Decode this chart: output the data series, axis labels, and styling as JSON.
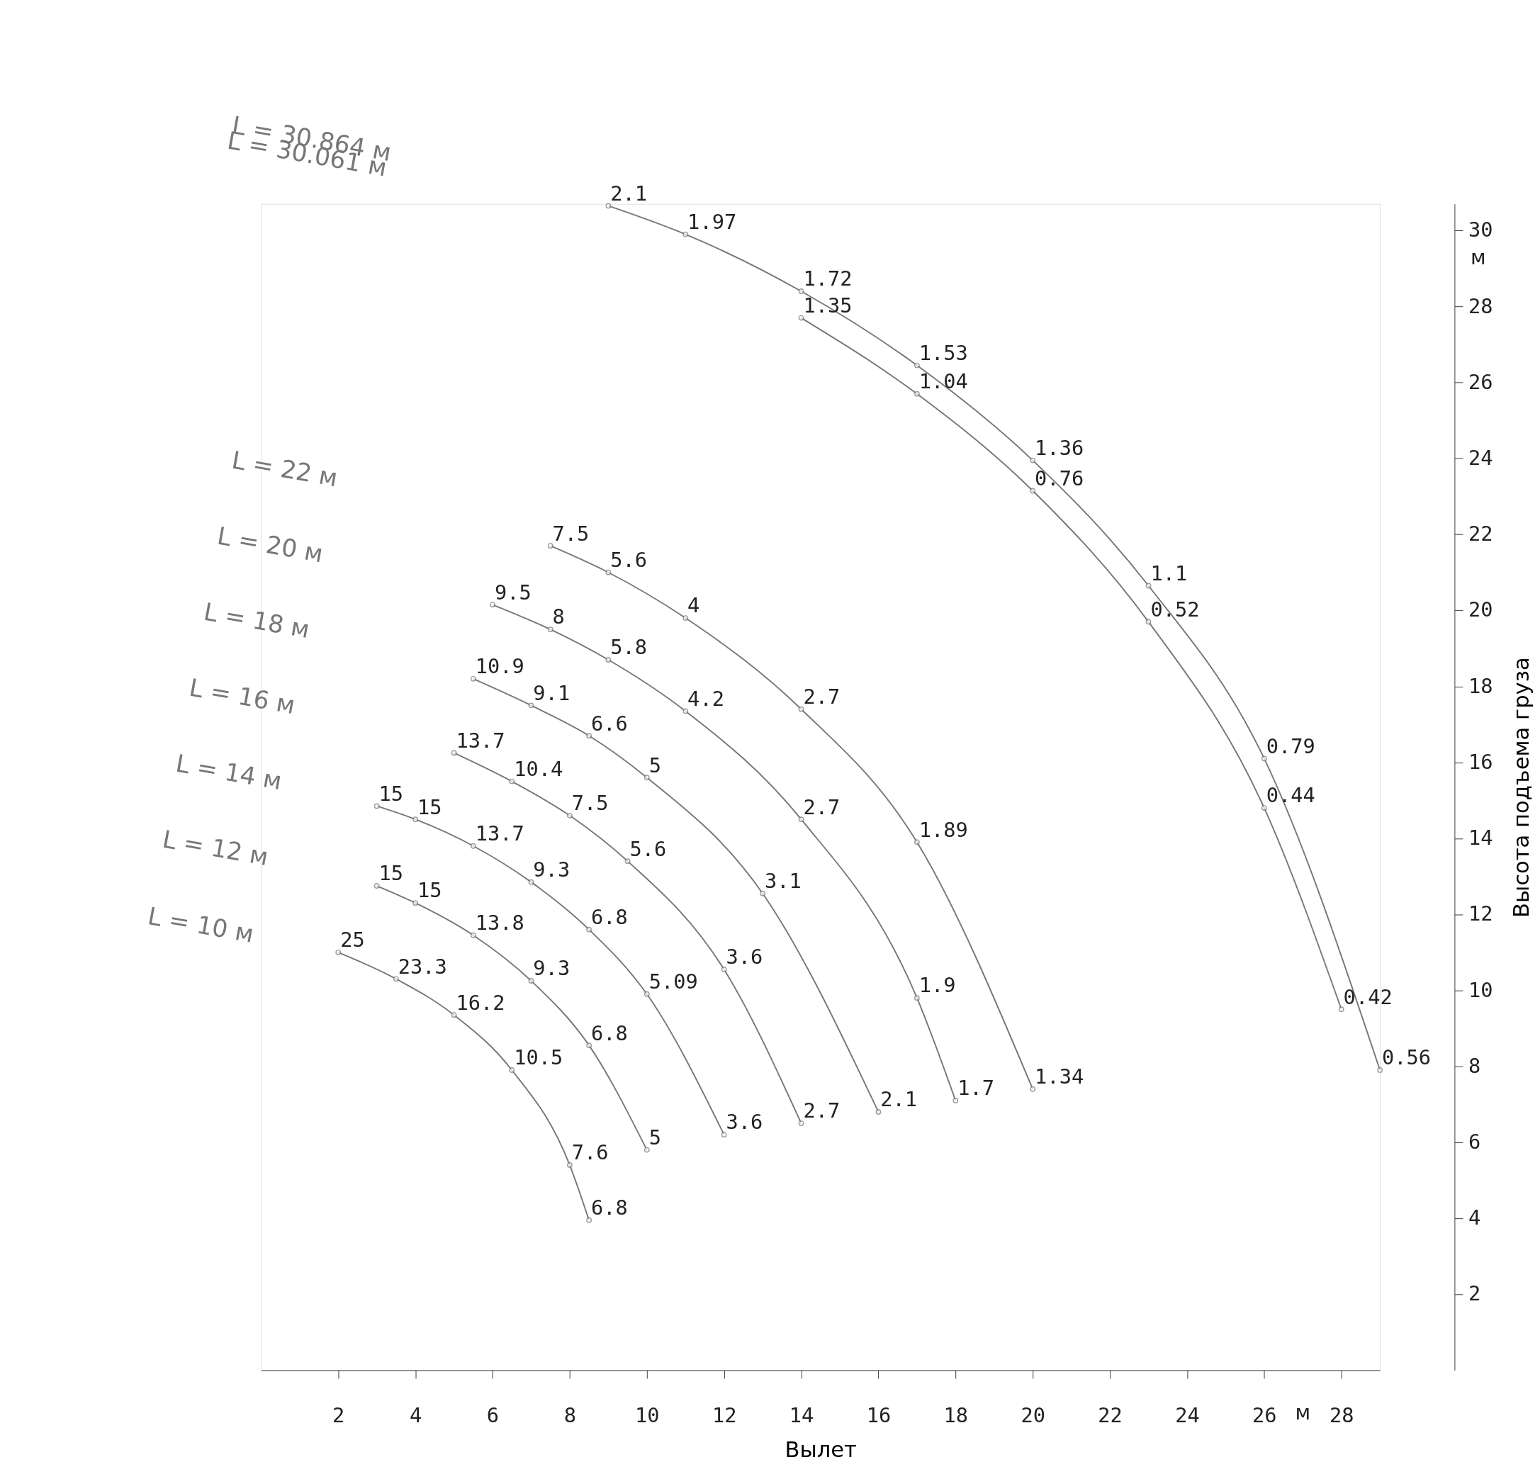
{
  "chart_data": {
    "type": "line",
    "xlabel": "Вылет",
    "ylabel": "Высота подъема груза",
    "xlim": [
      0,
      29
    ],
    "ylim": [
      0,
      30.7
    ],
    "xticks": [
      2,
      4,
      6,
      8,
      10,
      12,
      14,
      16,
      18,
      20,
      22,
      24,
      26,
      28
    ],
    "yticks": [
      2,
      4,
      6,
      8,
      10,
      12,
      14,
      16,
      18,
      20,
      22,
      24,
      26,
      28,
      30
    ],
    "grid": false,
    "marker": "circle",
    "line_style": "solid",
    "annotations": [
      "м",
      "м",
      "L = 30.864 м",
      "L = 30.061 м",
      "L = 22 м",
      "L = 20 м",
      "L = 18 м",
      "L = 16 м",
      "L = 14 м",
      "L = 12 м",
      "L = 10 м",
      {
        "text": "2.1",
        "x": 9,
        "y": 30.65
      },
      {
        "text": "1.97",
        "x": 11,
        "y": 29.9
      },
      {
        "text": "1.72",
        "x": 14,
        "y": 28.4
      },
      {
        "text": "1.53",
        "x": 17,
        "y": 26.45
      },
      {
        "text": "1.36",
        "x": 20,
        "y": 23.95
      },
      {
        "text": "1.1",
        "x": 23,
        "y": 20.65
      },
      {
        "text": "0.79",
        "x": 26,
        "y": 16.1
      },
      {
        "text": "0.56",
        "x": 29,
        "y": 7.9
      },
      {
        "text": "1.35",
        "x": 14,
        "y": 27.7
      },
      {
        "text": "1.04",
        "x": 17,
        "y": 25.7
      },
      {
        "text": "0.76",
        "x": 20,
        "y": 23.15
      },
      {
        "text": "0.52",
        "x": 23,
        "y": 19.7
      },
      {
        "text": "0.44",
        "x": 26,
        "y": 14.8
      },
      {
        "text": "0.42",
        "x": 28,
        "y": 9.5
      },
      {
        "text": "7.5",
        "x": 7.5,
        "y": 21.7
      },
      {
        "text": "5.6",
        "x": 9,
        "y": 21.0
      },
      {
        "text": "4",
        "x": 11,
        "y": 19.8
      },
      {
        "text": "2.7",
        "x": 14,
        "y": 17.4
      },
      {
        "text": "1.89",
        "x": 17,
        "y": 13.9
      },
      {
        "text": "1.34",
        "x": 20,
        "y": 7.4
      },
      {
        "text": "9.5",
        "x": 6,
        "y": 20.15
      },
      {
        "text": "8",
        "x": 7.5,
        "y": 19.5
      },
      {
        "text": "5.8",
        "x": 9,
        "y": 18.7
      },
      {
        "text": "4.2",
        "x": 11,
        "y": 17.35
      },
      {
        "text": "2.7",
        "x": 14,
        "y": 14.5
      },
      {
        "text": "1.9",
        "x": 17,
        "y": 9.8
      },
      {
        "text": "1.7",
        "x": 18,
        "y": 7.1
      },
      {
        "text": "10.9",
        "x": 5.5,
        "y": 18.2
      },
      {
        "text": "9.1",
        "x": 7,
        "y": 17.5
      },
      {
        "text": "6.6",
        "x": 8.5,
        "y": 16.7
      },
      {
        "text": "5",
        "x": 10,
        "y": 15.6
      },
      {
        "text": "3.1",
        "x": 13,
        "y": 12.55
      },
      {
        "text": "2.1",
        "x": 16,
        "y": 6.8
      },
      {
        "text": "13.7",
        "x": 5,
        "y": 16.25
      },
      {
        "text": "10.4",
        "x": 6.5,
        "y": 15.5
      },
      {
        "text": "7.5",
        "x": 8,
        "y": 14.6
      },
      {
        "text": "5.6",
        "x": 9.5,
        "y": 13.4
      },
      {
        "text": "3.6",
        "x": 12,
        "y": 10.55
      },
      {
        "text": "2.7",
        "x": 14,
        "y": 6.5
      },
      {
        "text": "15",
        "x": 3,
        "y": 14.85
      },
      {
        "text": "15",
        "x": 4,
        "y": 14.5
      },
      {
        "text": "13.7",
        "x": 5.5,
        "y": 13.8
      },
      {
        "text": "9.3",
        "x": 7,
        "y": 12.85
      },
      {
        "text": "6.8",
        "x": 8.5,
        "y": 11.6
      },
      {
        "text": "5.09",
        "x": 10,
        "y": 9.9
      },
      {
        "text": "3.6",
        "x": 12,
        "y": 6.2
      },
      {
        "text": "15",
        "x": 3,
        "y": 12.75
      },
      {
        "text": "15",
        "x": 4,
        "y": 12.3
      },
      {
        "text": "13.8",
        "x": 5.5,
        "y": 11.45
      },
      {
        "text": "9.3",
        "x": 7,
        "y": 10.25
      },
      {
        "text": "6.8",
        "x": 8.5,
        "y": 8.55
      },
      {
        "text": "5",
        "x": 10,
        "y": 5.8
      },
      {
        "text": "25",
        "x": 2,
        "y": 11.0
      },
      {
        "text": "23.3",
        "x": 3.5,
        "y": 10.3
      },
      {
        "text": "16.2",
        "x": 5,
        "y": 9.35
      },
      {
        "text": "10.5",
        "x": 6.5,
        "y": 7.9
      },
      {
        "text": "7.6",
        "x": 8,
        "y": 5.4
      },
      {
        "text": "6.8",
        "x": 8.5,
        "y": 3.95
      }
    ],
    "series": [
      {
        "color": "#777777",
        "x": [
          9,
          11,
          14,
          17,
          20,
          23,
          26,
          29
        ],
        "values": [
          30.65,
          29.9,
          28.4,
          26.45,
          23.95,
          20.65,
          16.1,
          7.9
        ]
      },
      {
        "color": "#777777",
        "x": [
          14,
          17,
          20,
          23,
          26,
          28
        ],
        "values": [
          27.7,
          25.7,
          23.15,
          19.7,
          14.8,
          9.5
        ]
      },
      {
        "color": "#777777",
        "x": [
          7.5,
          9,
          11,
          14,
          17,
          20
        ],
        "values": [
          21.7,
          21.0,
          19.8,
          17.4,
          13.9,
          7.4
        ]
      },
      {
        "color": "#777777",
        "x": [
          6,
          7.5,
          9,
          11,
          14,
          17,
          18
        ],
        "values": [
          20.15,
          19.5,
          18.7,
          17.35,
          14.5,
          9.8,
          7.1
        ]
      },
      {
        "color": "#777777",
        "x": [
          5.5,
          7,
          8.5,
          10,
          13,
          16
        ],
        "values": [
          18.2,
          17.5,
          16.7,
          15.6,
          12.55,
          6.8
        ]
      },
      {
        "color": "#777777",
        "x": [
          5,
          6.5,
          8,
          9.5,
          12,
          14
        ],
        "values": [
          16.25,
          15.5,
          14.6,
          13.4,
          10.55,
          6.5
        ]
      },
      {
        "color": "#777777",
        "x": [
          3,
          4,
          5.5,
          7,
          8.5,
          10,
          12
        ],
        "values": [
          14.85,
          14.5,
          13.8,
          12.85,
          11.6,
          9.9,
          6.2
        ]
      },
      {
        "color": "#777777",
        "x": [
          3,
          4,
          5.5,
          7,
          8.5,
          10
        ],
        "values": [
          12.75,
          12.3,
          11.45,
          10.25,
          8.55,
          5.8
        ]
      },
      {
        "color": "#777777",
        "x": [
          2,
          3.5,
          5,
          6.5,
          8,
          8.5
        ],
        "values": [
          11.0,
          10.3,
          9.35,
          7.9,
          5.4,
          3.95
        ]
      }
    ]
  }
}
